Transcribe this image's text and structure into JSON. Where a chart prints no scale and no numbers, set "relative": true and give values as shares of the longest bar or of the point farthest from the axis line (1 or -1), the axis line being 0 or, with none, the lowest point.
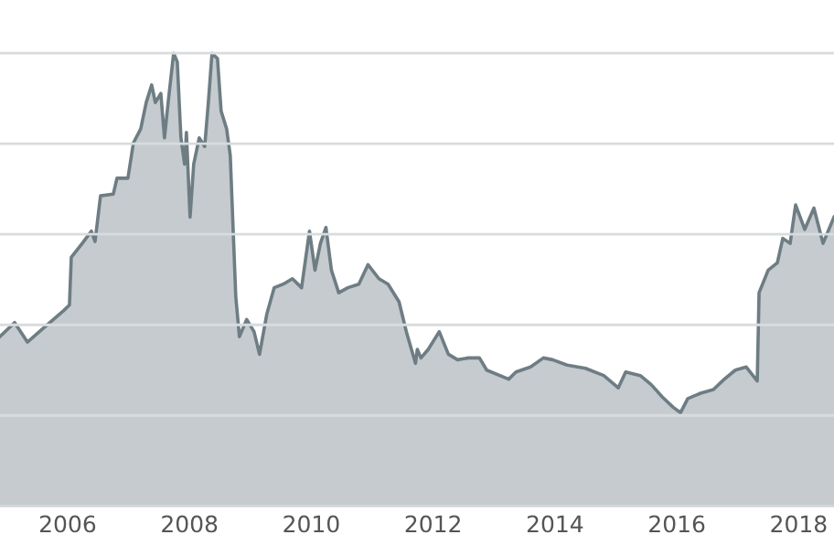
{
  "chart_data": {
    "type": "area",
    "relative": true,
    "x": [
      2004.89,
      2005.13,
      2005.34,
      2005.64,
      2005.94,
      2006.03,
      2006.06,
      2006.24,
      2006.39,
      2006.45,
      2006.54,
      2006.75,
      2006.81,
      2006.99,
      2007.08,
      2007.2,
      2007.29,
      2007.38,
      2007.44,
      2007.53,
      2007.59,
      2007.65,
      2007.74,
      2007.8,
      2007.86,
      2007.92,
      2007.95,
      2008.01,
      2008.07,
      2008.16,
      2008.25,
      2008.31,
      2008.37,
      2008.46,
      2008.52,
      2008.61,
      2008.67,
      2008.76,
      2008.82,
      2008.94,
      2009.06,
      2009.15,
      2009.27,
      2009.39,
      2009.54,
      2009.69,
      2009.84,
      2009.97,
      2010.06,
      2010.15,
      2010.24,
      2010.33,
      2010.45,
      2010.6,
      2010.78,
      2010.93,
      2011.11,
      2011.26,
      2011.44,
      2011.56,
      2011.71,
      2011.74,
      2011.8,
      2011.92,
      2012.1,
      2012.25,
      2012.4,
      2012.58,
      2012.76,
      2012.88,
      2013.24,
      2013.36,
      2013.6,
      2013.81,
      2013.96,
      2014.2,
      2014.5,
      2014.8,
      2015.04,
      2015.16,
      2015.4,
      2015.58,
      2015.76,
      2015.94,
      2016.06,
      2016.18,
      2016.39,
      2016.6,
      2016.78,
      2016.96,
      2017.14,
      2017.32,
      2017.35,
      2017.5,
      2017.65,
      2017.74,
      2017.86,
      2017.95,
      2018.1,
      2018.25,
      2018.4,
      2018.58
    ],
    "series": [
      {
        "color": "#6e7d84",
        "values": [
          0.374,
          0.405,
          0.362,
          0.397,
          0.432,
          0.444,
          0.549,
          0.58,
          0.607,
          0.584,
          0.685,
          0.689,
          0.724,
          0.724,
          0.802,
          0.833,
          0.891,
          0.93,
          0.891,
          0.911,
          0.813,
          0.891,
          1,
          0.981,
          0.813,
          0.755,
          0.825,
          0.638,
          0.755,
          0.813,
          0.794,
          0.891,
          1,
          0.988,
          0.872,
          0.833,
          0.774,
          0.463,
          0.374,
          0.412,
          0.385,
          0.335,
          0.424,
          0.482,
          0.49,
          0.502,
          0.482,
          0.607,
          0.521,
          0.58,
          0.615,
          0.521,
          0.471,
          0.482,
          0.49,
          0.533,
          0.502,
          0.49,
          0.451,
          0.385,
          0.315,
          0.346,
          0.327,
          0.346,
          0.385,
          0.335,
          0.323,
          0.327,
          0.327,
          0.3,
          0.28,
          0.296,
          0.307,
          0.327,
          0.323,
          0.311,
          0.304,
          0.288,
          0.261,
          0.296,
          0.288,
          0.268,
          0.241,
          0.218,
          0.206,
          0.237,
          0.249,
          0.257,
          0.28,
          0.3,
          0.307,
          0.276,
          0.471,
          0.521,
          0.537,
          0.591,
          0.58,
          0.665,
          0.611,
          0.658,
          0.58,
          0.638
        ]
      }
    ],
    "xlim": [
      2004.89,
      2018.58
    ],
    "xticks": [
      2006,
      2008,
      2010,
      2012,
      2014,
      2016,
      2018
    ],
    "grid": "y",
    "legend": false,
    "tick_labels": "x",
    "marker": "none",
    "line_style": "solid"
  }
}
